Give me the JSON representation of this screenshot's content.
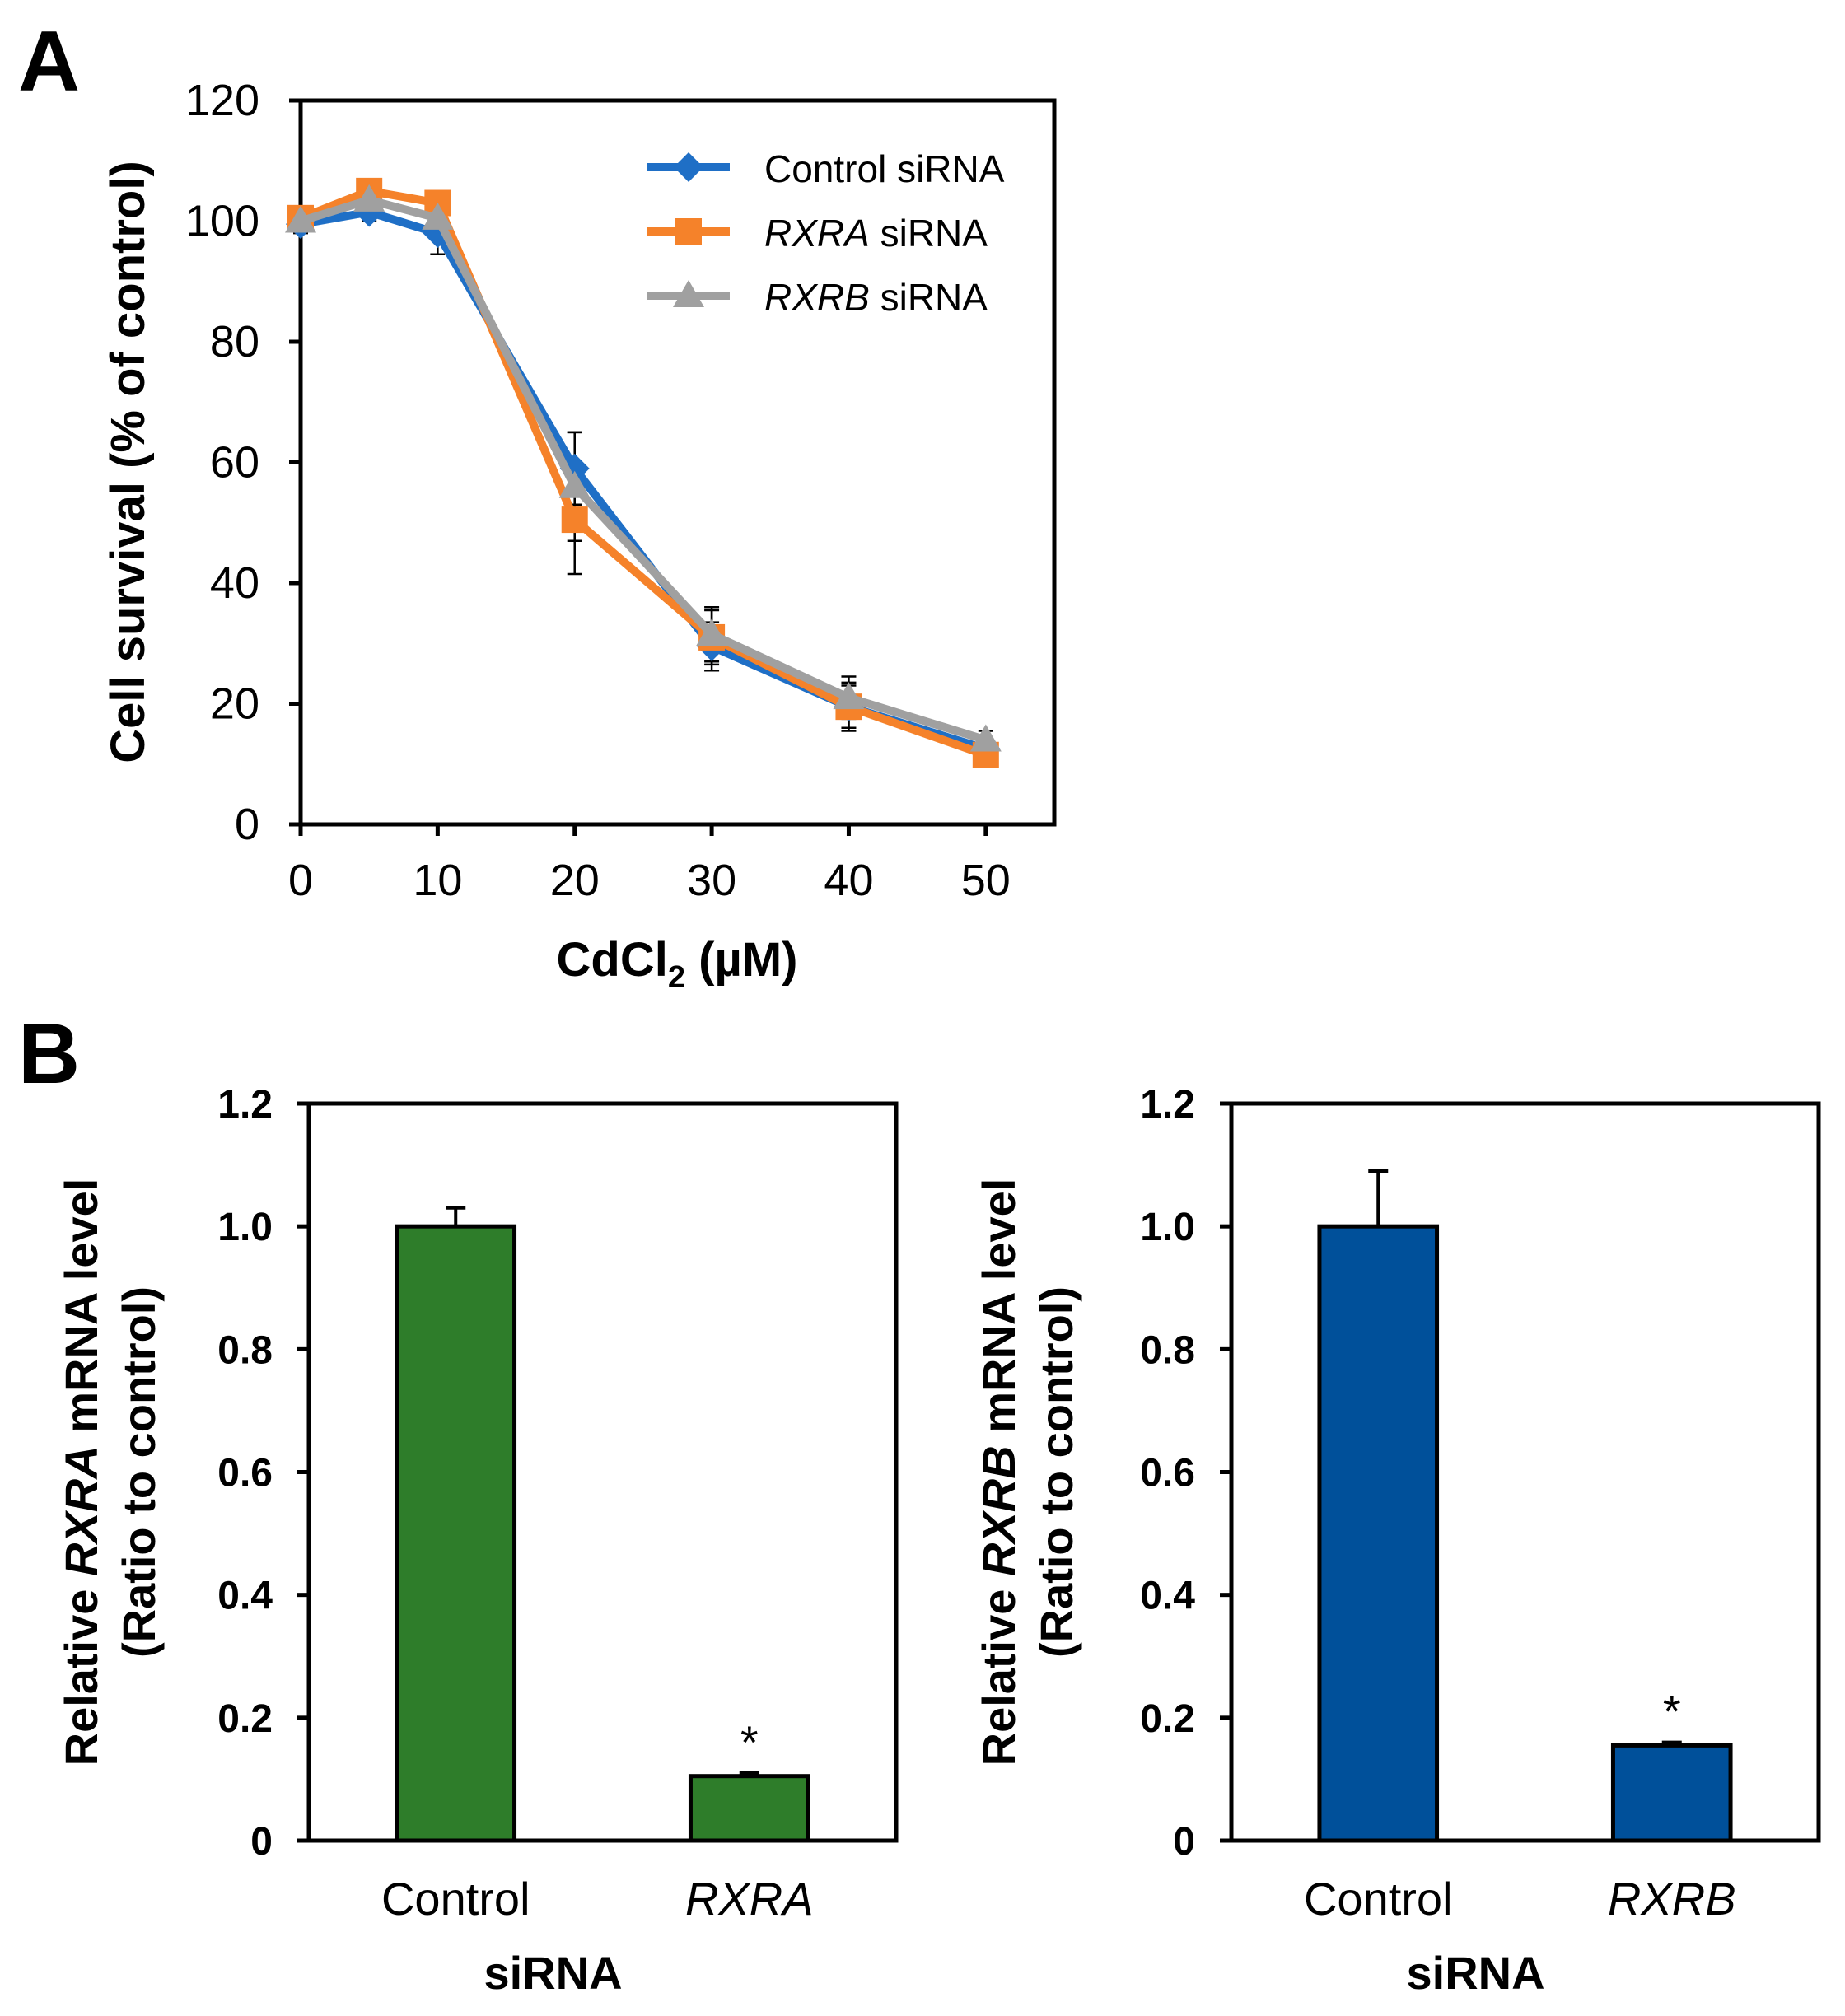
{
  "panels": {
    "a_label": "A",
    "b_label": "B"
  },
  "chart_data": [
    {
      "id": "A",
      "type": "line",
      "x": [
        0,
        5,
        10,
        20,
        30,
        40,
        50
      ],
      "xlim": [
        0,
        55
      ],
      "ylim": [
        0,
        120
      ],
      "xticks": [
        "0",
        "10",
        "20",
        "30",
        "40",
        "50"
      ],
      "yticks": [
        "0",
        "20",
        "40",
        "60",
        "80",
        "100",
        "120"
      ],
      "ylabel": "Cell survival (% of control)",
      "xlabel_main": "CdCl",
      "xlabel_sub": "2",
      "xlabel_unit": " (µM)",
      "legend_position": "top-right",
      "series": [
        {
          "name": "Control siRNA",
          "name_italic": "",
          "name_rest": "Control siRNA",
          "color": "#1f6fc6",
          "marker": "diamond",
          "values": [
            99.5,
            101.5,
            98.0,
            59.0,
            29.5,
            19.5,
            12.5
          ],
          "errors": [
            1.5,
            1.5,
            3.5,
            6.0,
            4.0,
            4.0,
            1.5
          ]
        },
        {
          "name": "RXRA siRNA",
          "name_italic": "RXRA",
          "name_rest": " siRNA",
          "color": "#f5822a",
          "marker": "square",
          "values": [
            100.5,
            105.0,
            103.0,
            50.5,
            31.0,
            19.5,
            11.5
          ],
          "errors": [
            1.0,
            1.0,
            1.5,
            9.0,
            4.5,
            3.5,
            1.5
          ]
        },
        {
          "name": "RXRB siRNA",
          "name_italic": "RXRB",
          "name_rest": " siRNA",
          "color": "#a0a0a0",
          "marker": "triangle",
          "values": [
            100.0,
            103.5,
            100.5,
            56.0,
            31.5,
            21.0,
            14.0
          ],
          "errors": [
            1.0,
            1.0,
            1.5,
            9.0,
            4.5,
            3.5,
            1.5
          ]
        }
      ]
    },
    {
      "id": "B-left",
      "type": "bar",
      "categories": [
        "Control",
        "RXRA"
      ],
      "category_italic": [
        false,
        true
      ],
      "values": [
        1.0,
        0.105
      ],
      "errors": [
        0.03,
        0.005
      ],
      "significance": [
        "",
        "*"
      ],
      "color": "#2e7d2a",
      "ylim": [
        0,
        1.2
      ],
      "yticks": [
        "0",
        "0.2",
        "0.4",
        "0.6",
        "0.8",
        "1.0",
        "1.2"
      ],
      "ylabel_pre": "Relative ",
      "ylabel_italic": "RXRA",
      "ylabel_post": " mRNA level",
      "ylabel_line2": "(Ratio to control)",
      "xlabel": "siRNA"
    },
    {
      "id": "B-right",
      "type": "bar",
      "categories": [
        "Control",
        "RXRB"
      ],
      "category_italic": [
        false,
        true
      ],
      "values": [
        1.0,
        0.155
      ],
      "errors": [
        0.09,
        0.005
      ],
      "significance": [
        "",
        "*"
      ],
      "color": "#00509a",
      "ylim": [
        0,
        1.2
      ],
      "yticks": [
        "0",
        "0.2",
        "0.4",
        "0.6",
        "0.8",
        "1.0",
        "1.2"
      ],
      "ylabel_pre": "Relative ",
      "ylabel_italic": "RXRB",
      "ylabel_post": " mRNA level",
      "ylabel_line2": "(Ratio to control)",
      "xlabel": "siRNA"
    }
  ]
}
